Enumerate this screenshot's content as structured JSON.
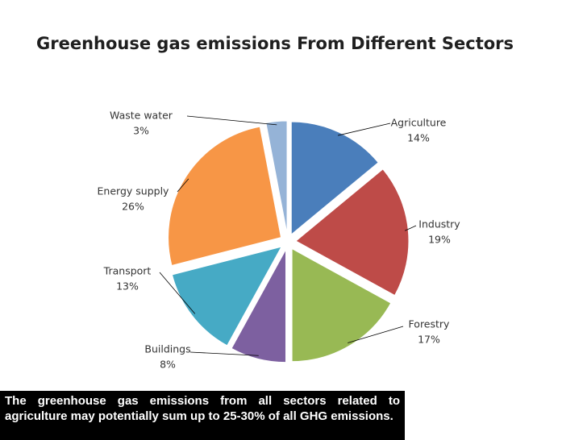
{
  "chart_data": {
    "type": "pie",
    "title": "Greenhouse gas emissions From Different Sectors",
    "categories": [
      "Agriculture",
      "Industry",
      "Forestry",
      "Buildings",
      "Transport",
      "Energy supply",
      "Waste water"
    ],
    "values": [
      14,
      19,
      17,
      8,
      13,
      26,
      3
    ],
    "value_labels": [
      "14%",
      "19%",
      "17%",
      "8%",
      "13%",
      "26%",
      "3%"
    ],
    "colors": [
      "#4a7ebb",
      "#be4b48",
      "#98b954",
      "#7d60a0",
      "#46aac5",
      "#f79646",
      "#95b3d7"
    ],
    "annotation": "The greenhouse gas emissions from all sectors related to agriculture may potentially sum up to 25-30% of all GHG emissions."
  }
}
